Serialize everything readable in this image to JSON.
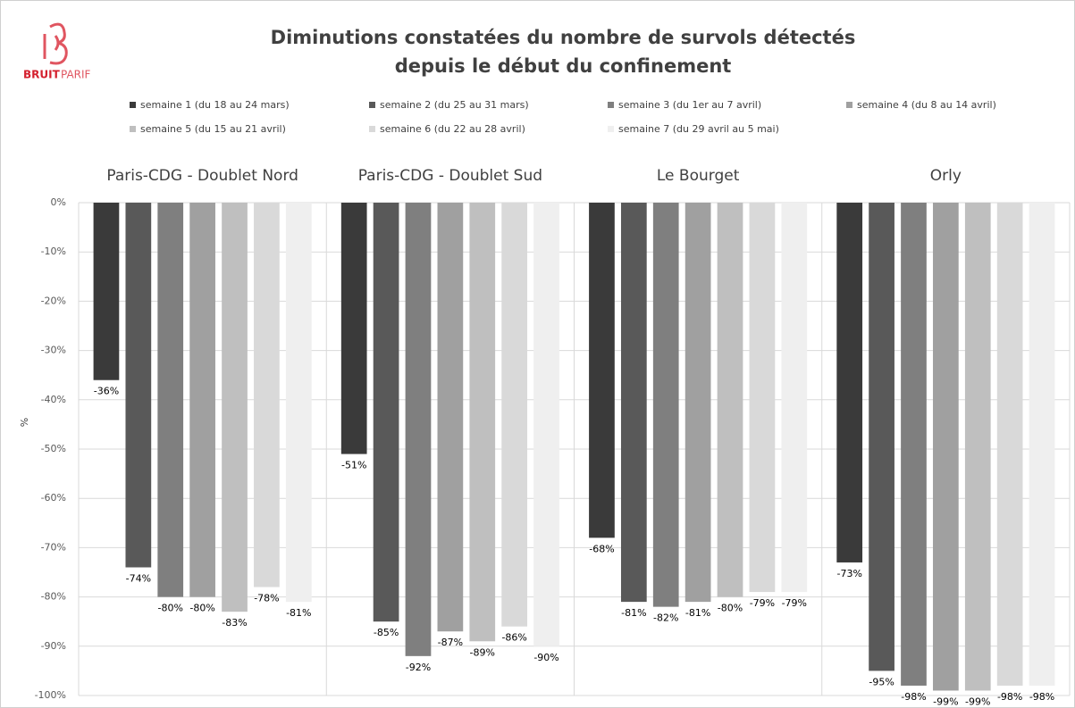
{
  "logo": {
    "bold": "BRUIT",
    "light": "PARIF"
  },
  "chart_data": {
    "type": "bar",
    "title_lines": [
      "Diminutions constatées du nombre de survols détectés",
      "depuis le début du confinement"
    ],
    "y_label": "%",
    "categories": [
      "Paris-CDG - Doublet Nord",
      "Paris-CDG - Doublet Sud",
      "Le Bourget",
      "Orly"
    ],
    "series": [
      {
        "name": "semaine 1 (du 18 au 24 mars)",
        "color": "#3a3a3a",
        "values": [
          -36,
          -51,
          -68,
          -73
        ],
        "value_labels": [
          "-36%",
          "-51%",
          "-68%",
          "-73%"
        ]
      },
      {
        "name": "semaine 2 (du 25 au 31 mars)",
        "color": "#595959",
        "values": [
          -74,
          -85,
          -81,
          -95
        ],
        "value_labels": [
          "-74%",
          "-85%",
          "-81%",
          "-95%"
        ]
      },
      {
        "name": "semaine 3 (du 1er au 7 avril)",
        "color": "#7f7f7f",
        "values": [
          -80,
          -92,
          -82,
          -98
        ],
        "value_labels": [
          "-80%",
          "-92%",
          "-82%",
          "-98%"
        ]
      },
      {
        "name": "semaine 4 (du 8 au 14 avril)",
        "color": "#a0a0a0",
        "values": [
          -80,
          -87,
          -81,
          -99
        ],
        "value_labels": [
          "-80%",
          "-87%",
          "-81%",
          "-99%"
        ]
      },
      {
        "name": "semaine 5 (du 15 au 21 avril)",
        "color": "#bfbfbf",
        "values": [
          -83,
          -89,
          -80,
          -99
        ],
        "value_labels": [
          "-83%",
          "-89%",
          "-80%",
          "-99%"
        ]
      },
      {
        "name": "semaine 6 (du 22 au 28 avril)",
        "color": "#d9d9d9",
        "values": [
          -78,
          -86,
          -79,
          -98
        ],
        "value_labels": [
          "-78%",
          "-86%",
          "-79%",
          "-98%"
        ]
      },
      {
        "name": "semaine 7 (du 29 avril au 5 mai)",
        "color": "#efefef",
        "values": [
          -81,
          -90,
          -79,
          -98
        ],
        "value_labels": [
          "-81%",
          "-90%",
          "-79%",
          "-98%"
        ]
      }
    ],
    "ylim": [
      -100,
      0
    ],
    "yticks": [
      {
        "value": 0,
        "label": "0%"
      },
      {
        "value": -10,
        "label": "-10%"
      },
      {
        "value": -20,
        "label": "-20%"
      },
      {
        "value": -30,
        "label": "-30%"
      },
      {
        "value": -40,
        "label": "-40%"
      },
      {
        "value": -50,
        "label": "-50%"
      },
      {
        "value": -60,
        "label": "-60%"
      },
      {
        "value": -70,
        "label": "-70%"
      },
      {
        "value": -80,
        "label": "-80%"
      },
      {
        "value": -90,
        "label": "-90%"
      },
      {
        "value": -100,
        "label": "-100%"
      }
    ],
    "grid": true
  }
}
